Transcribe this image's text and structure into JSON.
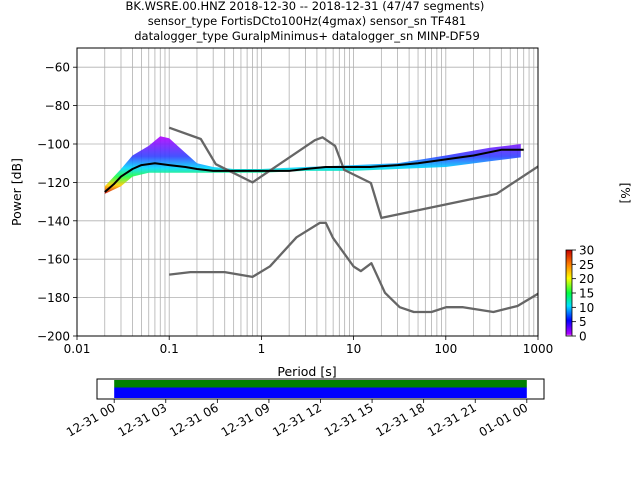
{
  "title_lines": [
    "BK.WSRE.00.HNZ   2018-12-30 -- 2018-12-31  (47/47 segments)",
    "sensor_type FortisDCto100Hz(4gmax) sensor_sn TF481",
    "datalogger_type GuralpMinimus+ datalogger_sn MINP-DF59"
  ],
  "chart_data": [
    {
      "type": "heatmap",
      "xlabel": "Period [s]",
      "ylabel": "Power [dB]",
      "x_scale": "log",
      "xlim": [
        0.01,
        1000
      ],
      "ylim": [
        -200,
        -50
      ],
      "x_ticks": [
        {
          "value": 0.01,
          "label": "0.01"
        },
        {
          "value": 0.1,
          "label": "0.1"
        },
        {
          "value": 1,
          "label": "1"
        },
        {
          "value": 10,
          "label": "10"
        },
        {
          "value": 100,
          "label": "100"
        },
        {
          "value": 1000,
          "label": "1000"
        }
      ],
      "y_ticks": [
        -60,
        -80,
        -100,
        -120,
        -140,
        -160,
        -180,
        -200
      ],
      "grid": true,
      "colorbar": {
        "label": "[%]",
        "range": [
          0,
          30
        ],
        "ticks": [
          0,
          5,
          10,
          15,
          20,
          25,
          30
        ],
        "colormap": "pqlx"
      },
      "series": [
        {
          "name": "",
          "kind": "nhnm",
          "color": "#666666",
          "points": [
            [
              0.1,
              -91.5
            ],
            [
              0.22,
              -97.4
            ],
            [
              0.32,
              -110.5
            ],
            [
              0.8,
              -120
            ],
            [
              3.8,
              -98
            ],
            [
              4.6,
              -96.5
            ],
            [
              6.3,
              -101
            ],
            [
              7.9,
              -113.5
            ],
            [
              15.4,
              -120.3
            ],
            [
              20,
              -138.5
            ],
            [
              354.8,
              -126
            ],
            [
              10000,
              -80
            ]
          ]
        },
        {
          "name": "",
          "kind": "nlnm",
          "color": "#666666",
          "points": [
            [
              0.1,
              -168
            ],
            [
              0.17,
              -166.7
            ],
            [
              0.4,
              -166.7
            ],
            [
              0.8,
              -169.2
            ],
            [
              1.24,
              -163.7
            ],
            [
              2.4,
              -148.6
            ],
            [
              4.3,
              -141.1
            ],
            [
              5,
              -141.1
            ],
            [
              6,
              -149
            ],
            [
              10,
              -163.8
            ],
            [
              12,
              -166.2
            ],
            [
              15.6,
              -162.1
            ],
            [
              21.9,
              -177.5
            ],
            [
              31.6,
              -185
            ],
            [
              45,
              -187.5
            ],
            [
              70,
              -187.5
            ],
            [
              101,
              -185
            ],
            [
              154,
              -185
            ],
            [
              328,
              -187.5
            ],
            [
              600,
              -184.4
            ],
            [
              1000,
              -178
            ]
          ]
        },
        {
          "name": "",
          "kind": "mean",
          "color": "#000000",
          "points": [
            [
              0.02,
              -125
            ],
            [
              0.025,
              -121
            ],
            [
              0.03,
              -117
            ],
            [
              0.04,
              -113
            ],
            [
              0.05,
              -111
            ],
            [
              0.07,
              -110
            ],
            [
              0.1,
              -111
            ],
            [
              0.15,
              -112
            ],
            [
              0.2,
              -113
            ],
            [
              0.3,
              -114
            ],
            [
              0.5,
              -114
            ],
            [
              1,
              -114
            ],
            [
              2,
              -114
            ],
            [
              3,
              -113
            ],
            [
              5,
              -112
            ],
            [
              8,
              -112
            ],
            [
              15,
              -112
            ],
            [
              30,
              -111
            ],
            [
              50,
              -110
            ],
            [
              100,
              -108
            ],
            [
              200,
              -106
            ],
            [
              400,
              -103
            ],
            [
              700,
              -103
            ]
          ]
        },
        {
          "name": "",
          "kind": "psd_upper_envelope",
          "points": [
            [
              0.02,
              -122
            ],
            [
              0.03,
              -113
            ],
            [
              0.04,
              -106
            ],
            [
              0.06,
              -101
            ],
            [
              0.08,
              -96
            ],
            [
              0.1,
              -97
            ],
            [
              0.13,
              -102
            ],
            [
              0.2,
              -110
            ],
            [
              0.3,
              -112
            ],
            [
              0.5,
              -113
            ],
            [
              1,
              -113
            ],
            [
              3,
              -112
            ],
            [
              10,
              -111
            ],
            [
              30,
              -110
            ],
            [
              100,
              -106
            ],
            [
              300,
              -102
            ],
            [
              650,
              -100
            ]
          ]
        },
        {
          "name": "",
          "kind": "psd_lower_envelope",
          "points": [
            [
              0.02,
              -126
            ],
            [
              0.03,
              -122
            ],
            [
              0.04,
              -117
            ],
            [
              0.06,
              -115
            ],
            [
              0.1,
              -115
            ],
            [
              0.2,
              -115
            ],
            [
              0.5,
              -115
            ],
            [
              1,
              -115
            ],
            [
              3,
              -114
            ],
            [
              10,
              -114
            ],
            [
              30,
              -113
            ],
            [
              100,
              -112
            ],
            [
              300,
              -109
            ],
            [
              650,
              -107
            ]
          ]
        }
      ]
    },
    {
      "type": "bar",
      "role": "data_coverage",
      "xlim": [
        "12-30 23:00",
        "01-01 01:00"
      ],
      "x_ticks": [
        "12-31 00",
        "12-31 03",
        "12-31 06",
        "12-31 09",
        "12-31 12",
        "12-31 15",
        "12-31 18",
        "12-31 21",
        "01-01 00"
      ],
      "bars": [
        {
          "name": "",
          "color": "#008000",
          "start": "12-31 00:00",
          "end": "12-31 24:00"
        },
        {
          "name": "",
          "color": "#0000ff",
          "start": "12-31 00:00",
          "end": "12-31 24:00"
        }
      ]
    }
  ]
}
